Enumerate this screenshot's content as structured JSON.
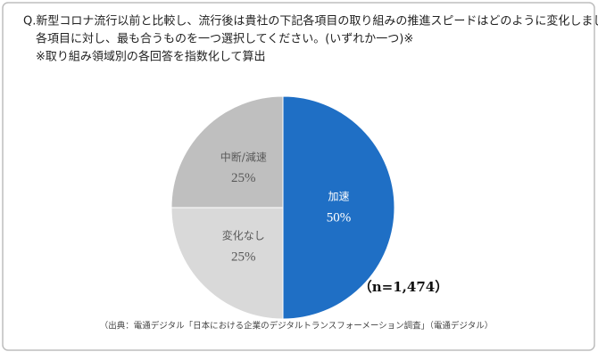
{
  "chart_data": {
    "type": "pie",
    "title_lines": [
      "Q.新型コロナ流行以前と比較し、流行後は貴社の下記各項目の取り組みの推進スピードはどのように変化しましたか、",
      "各項目に対し、最も合うものを一つ選択してください。(いずれか一つ)※",
      "※取り組み領域別の各回答を指数化して算出"
    ],
    "categories": [
      "加速",
      "変化なし",
      "中断/減速"
    ],
    "values": [
      50,
      25,
      25
    ],
    "value_labels": [
      "50%",
      "25%",
      "25%"
    ],
    "colors": [
      "#1f6fc5",
      "#d9d9d9",
      "#bfbfbf"
    ],
    "annotation": "（n=1,474）",
    "source": "（出典：電通デジタル「日本における企業のデジタルトランスフォーメーション調査」（電通デジタル）"
  }
}
